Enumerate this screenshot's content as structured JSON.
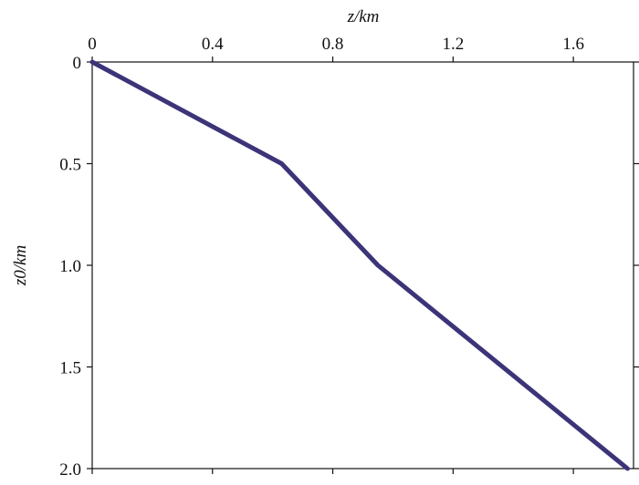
{
  "chart_data": {
    "type": "line",
    "x_label": "z/km",
    "y_label": "z0/km",
    "x": [
      0,
      0.63,
      0.95,
      1.78
    ],
    "series": [
      {
        "color": "#3b3478",
        "values": [
          0,
          0.5,
          1.0,
          2.0
        ]
      }
    ],
    "xlim": [
      0,
      1.8
    ],
    "xticks": [
      0,
      0.4,
      0.8,
      1.2,
      1.6
    ],
    "ylim": [
      0,
      2.0
    ],
    "yticks": [
      0,
      0.5,
      {
        "value": 1,
        "label": "1.0"
      },
      1.5,
      {
        "value": 2,
        "label": "2.0"
      }
    ],
    "y_inverted": true,
    "x_axis_top": true
  }
}
